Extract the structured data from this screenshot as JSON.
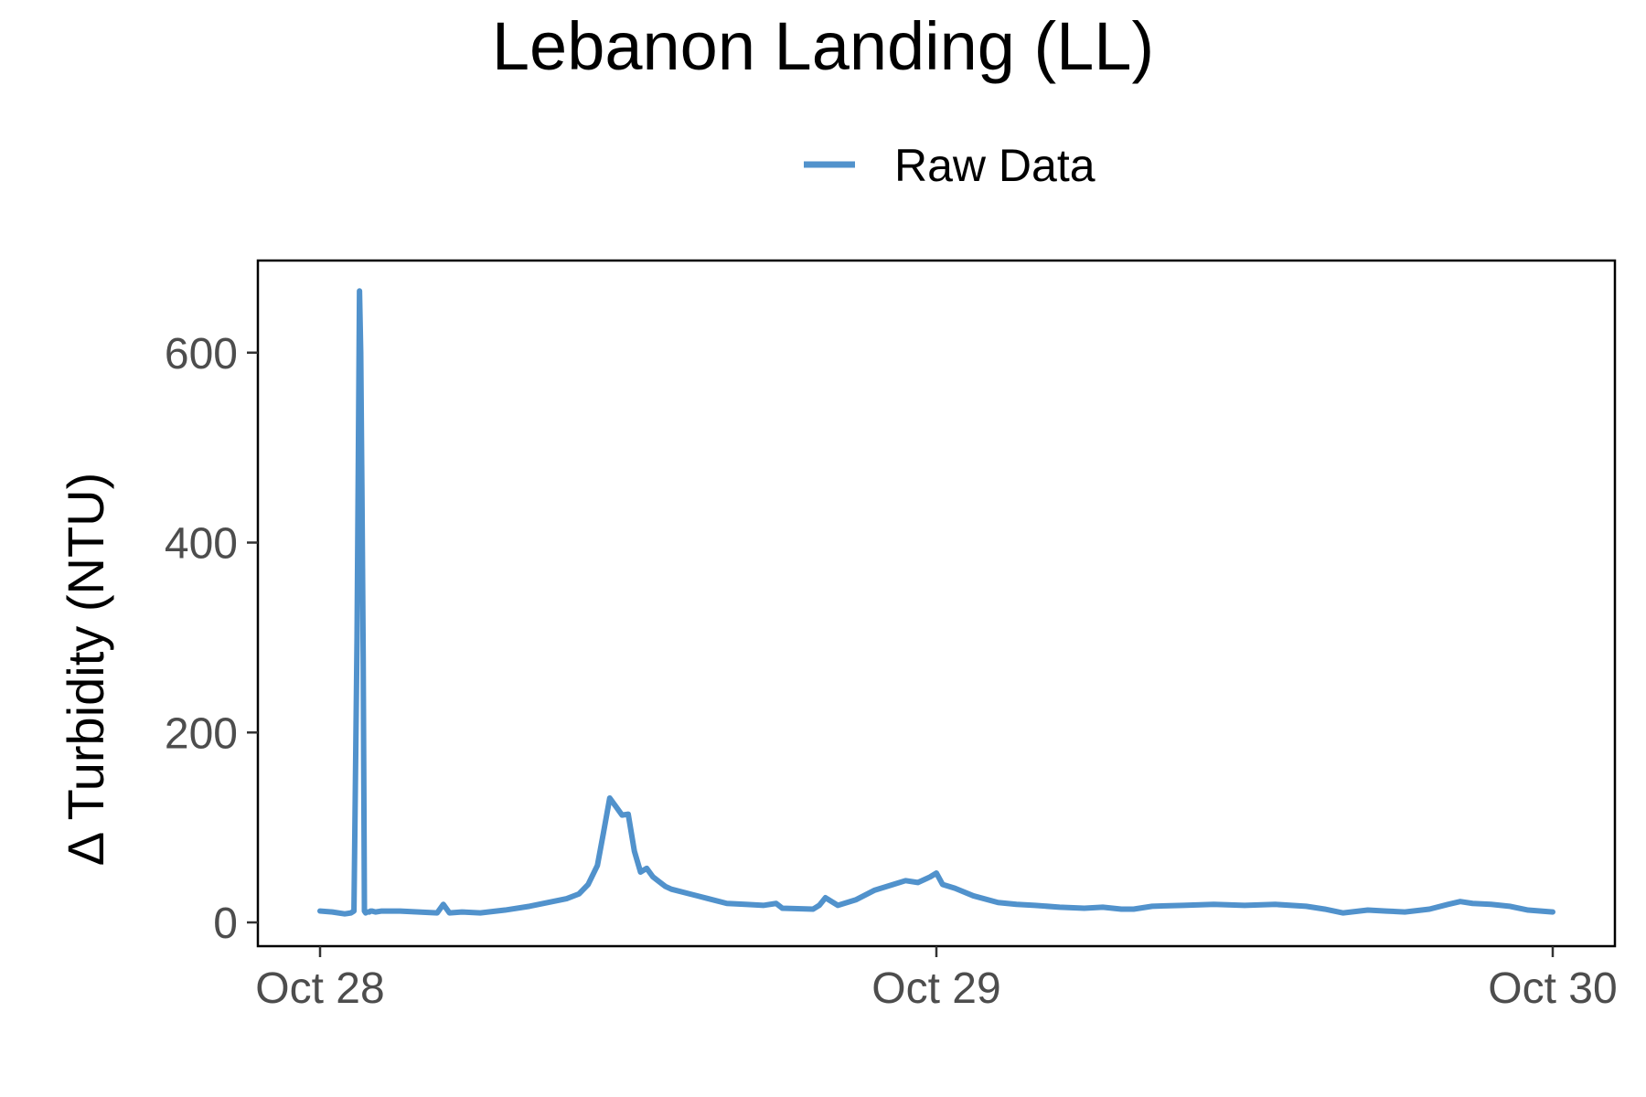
{
  "chart_data": {
    "type": "line",
    "title": "Lebanon Landing (LL)",
    "xlabel": "",
    "ylabel": "Δ Turbidity (NTU)",
    "legend": {
      "placement": "top",
      "entries": [
        "Raw Data"
      ]
    },
    "grid": false,
    "x_ticks": [
      "Oct 28",
      "Oct 29",
      "Oct 30"
    ],
    "x_range_days": [
      0,
      2
    ],
    "y_ticks": [
      "0",
      "200",
      "400",
      "600"
    ],
    "ylim": [
      -25,
      697
    ],
    "series": [
      {
        "name": "Raw Data",
        "color": "#5192CC",
        "x": [
          0.0,
          0.02,
          0.04,
          0.05,
          0.055,
          0.06,
          0.062,
          0.064,
          0.066,
          0.068,
          0.07,
          0.072,
          0.074,
          0.076,
          0.078,
          0.08,
          0.082,
          0.084,
          0.09,
          0.1,
          0.13,
          0.16,
          0.19,
          0.2,
          0.21,
          0.23,
          0.26,
          0.3,
          0.34,
          0.37,
          0.4,
          0.42,
          0.435,
          0.45,
          0.46,
          0.47,
          0.48,
          0.49,
          0.5,
          0.51,
          0.52,
          0.53,
          0.54,
          0.55,
          0.56,
          0.57,
          0.6,
          0.63,
          0.66,
          0.69,
          0.72,
          0.74,
          0.75,
          0.8,
          0.81,
          0.82,
          0.84,
          0.87,
          0.9,
          0.93,
          0.95,
          0.97,
          0.99,
          1.0,
          1.01,
          1.03,
          1.06,
          1.1,
          1.13,
          1.16,
          1.2,
          1.24,
          1.27,
          1.3,
          1.32,
          1.35,
          1.4,
          1.45,
          1.5,
          1.55,
          1.6,
          1.63,
          1.66,
          1.7,
          1.73,
          1.76,
          1.8,
          1.83,
          1.85,
          1.87,
          1.9,
          1.93,
          1.96,
          2.0
        ],
        "y": [
          12,
          11,
          9,
          10,
          12,
          300,
          480,
          665,
          600,
          450,
          280,
          12,
          10,
          11,
          11,
          11,
          12,
          12,
          11,
          12,
          12,
          11,
          10,
          19,
          10,
          11,
          10,
          13,
          17,
          21,
          25,
          30,
          40,
          60,
          95,
          131,
          122,
          113,
          114,
          75,
          53,
          57,
          48,
          43,
          38,
          35,
          30,
          25,
          20,
          19,
          18,
          20,
          15,
          14,
          18,
          26,
          18,
          24,
          34,
          40,
          44,
          42,
          48,
          52,
          40,
          36,
          28,
          21,
          19,
          18,
          16,
          15,
          16,
          14,
          14,
          17,
          18,
          19,
          18,
          19,
          17,
          14,
          10,
          13,
          12,
          11,
          14,
          19,
          22,
          20,
          19,
          17,
          13,
          11
        ]
      }
    ]
  }
}
